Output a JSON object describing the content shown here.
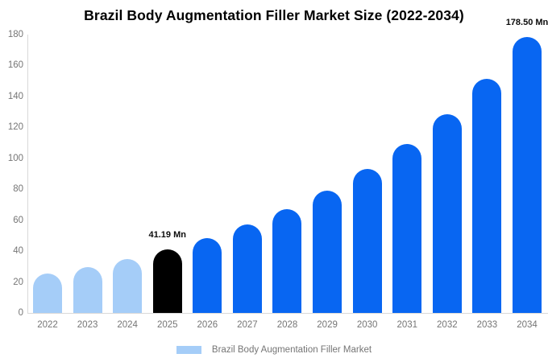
{
  "title": "Brazil Body Augmentation Filler Market Size (2022-2034)",
  "legend": {
    "label": "Brazil Body Augmentation Filler Market",
    "swatch_color": "#a5cdf8"
  },
  "colors": {
    "historical_bar": "#a5cdf8",
    "base_year_bar": "#000000",
    "forecast_bar": "#0866f2",
    "axis_line": "#d9d9d9",
    "tick_text": "#757575",
    "annotation_text": "#0b0b0b"
  },
  "chart_data": {
    "type": "bar",
    "title": "Brazil Body Augmentation Filler Market Size (2022-2034)",
    "categories": [
      "2022",
      "2023",
      "2024",
      "2025",
      "2026",
      "2027",
      "2028",
      "2029",
      "2030",
      "2031",
      "2032",
      "2033",
      "2034"
    ],
    "values": [
      25.3,
      29.7,
      35.0,
      41.19,
      48.5,
      57.0,
      67.1,
      79.0,
      93.0,
      109.4,
      128.7,
      151.5,
      178.5
    ],
    "series": [
      {
        "name": "Brazil Body Augmentation Filler Market",
        "values": [
          25.3,
          29.7,
          35.0,
          41.19,
          48.5,
          57.0,
          67.1,
          79.0,
          93.0,
          109.4,
          128.7,
          151.5,
          178.5
        ]
      }
    ],
    "bar_colors": [
      "#a5cdf8",
      "#a5cdf8",
      "#a5cdf8",
      "#000000",
      "#0866f2",
      "#0866f2",
      "#0866f2",
      "#0866f2",
      "#0866f2",
      "#0866f2",
      "#0866f2",
      "#0866f2",
      "#0866f2"
    ],
    "xlabel": "",
    "ylabel": "",
    "ylim": [
      0,
      180
    ],
    "yticks": [
      0,
      20,
      40,
      60,
      80,
      100,
      120,
      140,
      160,
      180
    ],
    "grid": false,
    "legend_position": "bottom",
    "annotations": [
      {
        "category": "2025",
        "text": "41.19 Mn"
      },
      {
        "category": "2034",
        "text": "178.50 Mn"
      }
    ]
  }
}
